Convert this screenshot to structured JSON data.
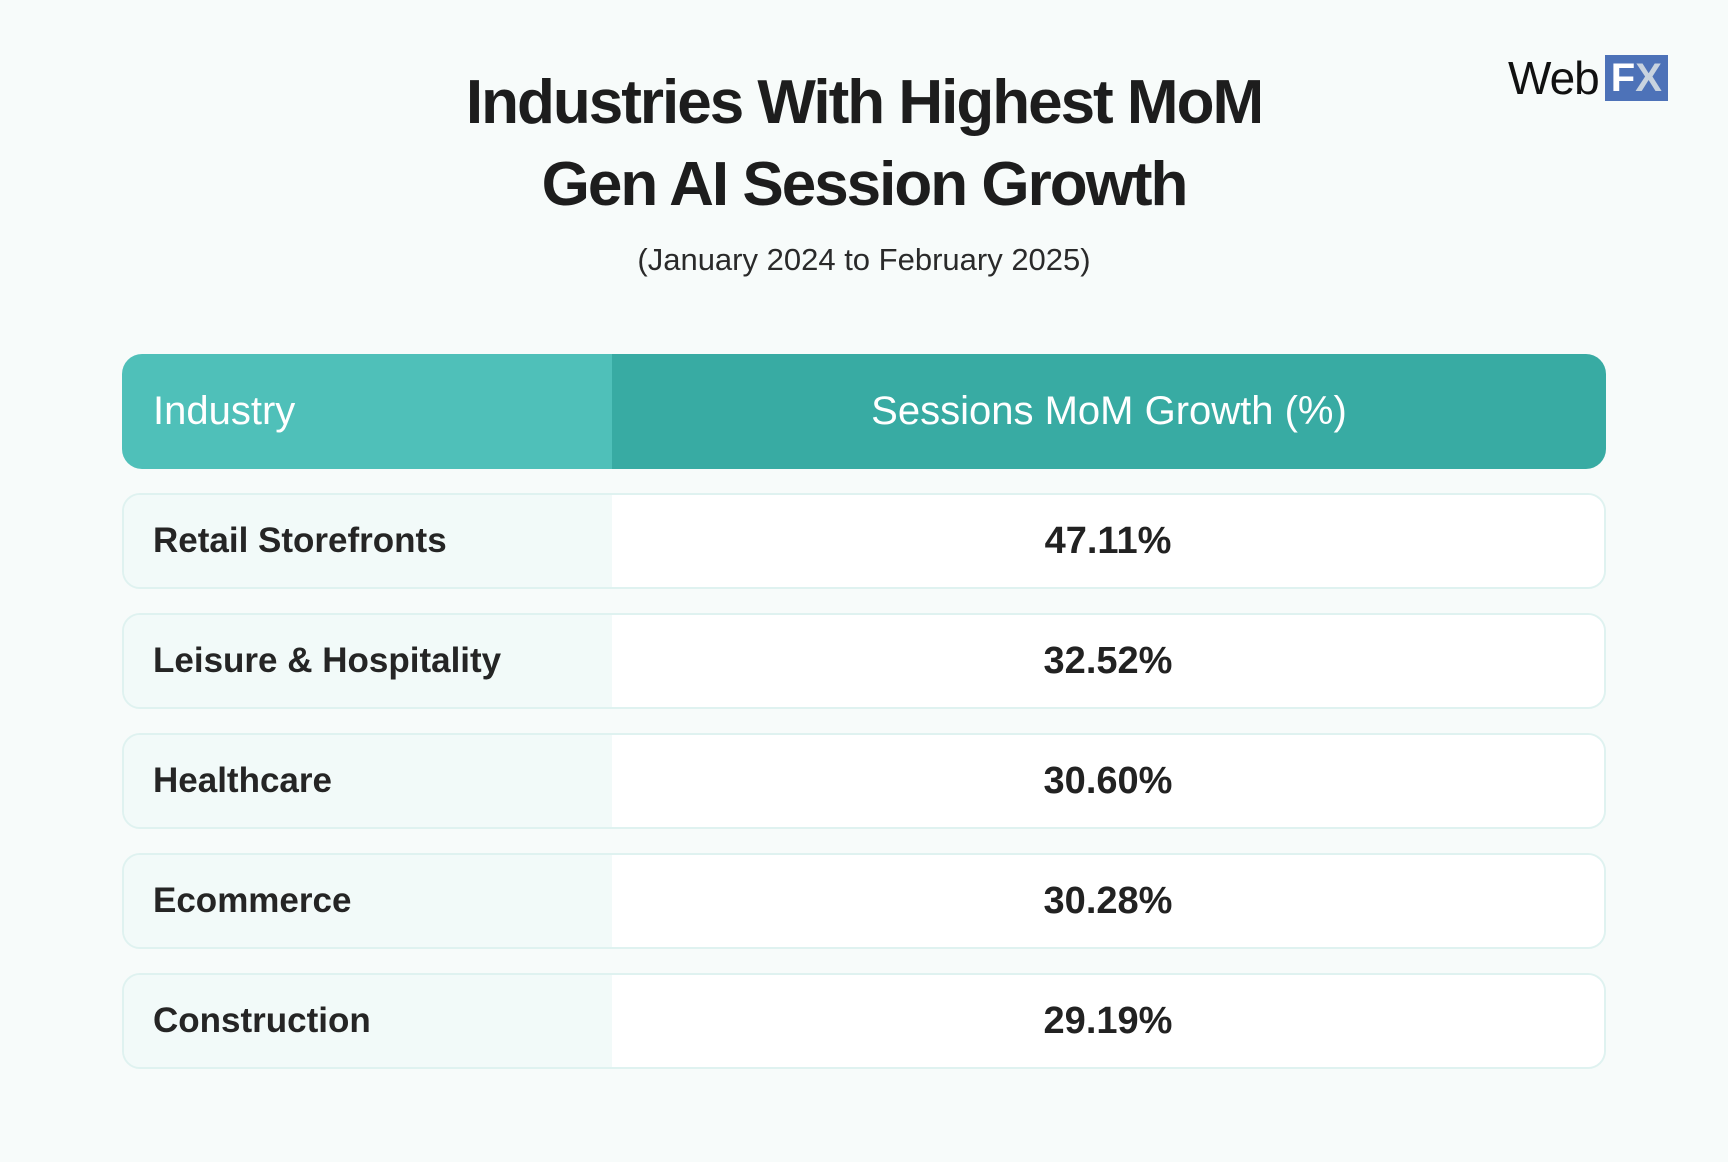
{
  "title": {
    "line1": "Industries With Highest MoM",
    "line2": "Gen AI Session Growth"
  },
  "subtitle": "(January 2024 to February 2025)",
  "logo": {
    "text_web": "Web",
    "text_f": "F",
    "text_x": "X",
    "brand_color": "#4d72b8"
  },
  "table": {
    "headers": [
      "Industry",
      "Sessions MoM Growth (%)"
    ],
    "rows": [
      {
        "industry": "Retail Storefronts",
        "growth": "47.11%"
      },
      {
        "industry": "Leisure & Hospitality",
        "growth": "32.52%"
      },
      {
        "industry": "Healthcare",
        "growth": "30.60%"
      },
      {
        "industry": "Ecommerce",
        "growth": "30.28%"
      },
      {
        "industry": "Construction",
        "growth": "29.19%"
      }
    ],
    "colors": {
      "header_left": "#4fc0b9",
      "header_right": "#38aba3"
    }
  }
}
